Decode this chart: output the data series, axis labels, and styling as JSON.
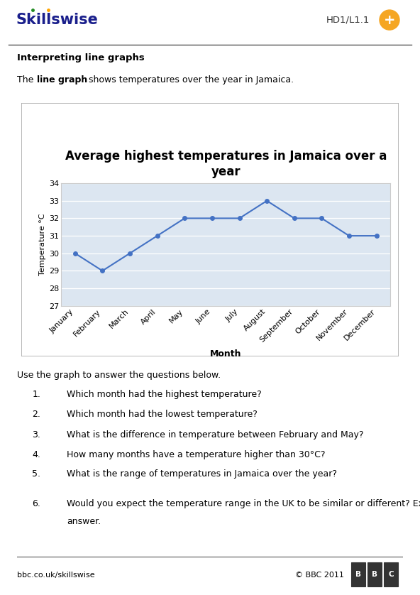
{
  "title": "Average highest temperatures in Jamaica over a\nyear",
  "months": [
    "January",
    "February",
    "March",
    "April",
    "May",
    "June",
    "July",
    "August",
    "September",
    "October",
    "November",
    "December"
  ],
  "temperatures": [
    30,
    29,
    30,
    31,
    32,
    32,
    32,
    33,
    32,
    32,
    31,
    31
  ],
  "ylabel": "Temperature °C",
  "xlabel": "Month",
  "ylim": [
    27,
    34
  ],
  "yticks": [
    27,
    28,
    29,
    30,
    31,
    32,
    33,
    34
  ],
  "line_color": "#4472C4",
  "marker": "o",
  "marker_size": 4,
  "chart_bg": "#dce6f1",
  "page_bg": "#ffffff",
  "header_text": "HD1/L1.1",
  "skillswise_color": "#1a1f8c",
  "section_title": "Interpreting line graphs",
  "questions_intro": "Use the graph to answer the questions below.",
  "questions": [
    "Which month had the highest temperature?",
    "Which month had the lowest temperature?",
    "What is the difference in temperature between February and May?",
    "How many months have a temperature higher than 30°C?",
    "What is the range of temperatures in Jamaica over the year?",
    "Would you expect the temperature range in the UK to be similar or different? Explain your answer."
  ],
  "footer_left": "bbc.co.uk/skillswise",
  "footer_right": "© BBC 2011"
}
